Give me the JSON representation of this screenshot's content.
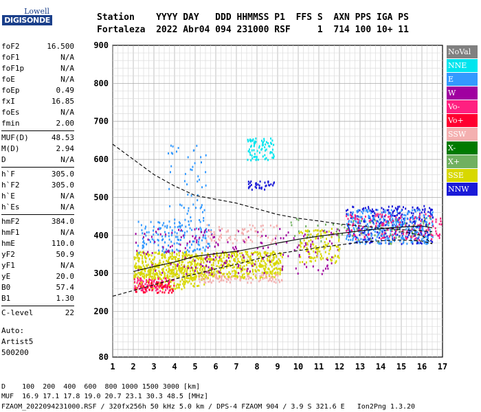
{
  "logo": {
    "top": "Lowell",
    "bottom": "DIGISONDE"
  },
  "header": {
    "line1": "Station    YYYY DAY   DDD HHMMSS P1  FFS S  AXN PPS IGA PS",
    "line2": "Fortaleza  2022 Abr04 094 231000 RSF     1  714 100 10+ 11"
  },
  "params": [
    {
      "label": "foF2",
      "value": "16.500"
    },
    {
      "label": "foF1",
      "value": "N/A"
    },
    {
      "label": "foF1p",
      "value": "N/A"
    },
    {
      "label": "foE",
      "value": "N/A"
    },
    {
      "label": "foEp",
      "value": "0.49"
    },
    {
      "label": "fxI",
      "value": "16.85"
    },
    {
      "label": "foEs",
      "value": "N/A"
    },
    {
      "label": "fmin",
      "value": "2.00"
    },
    {
      "label": "MUF(D)",
      "value": "48.53"
    },
    {
      "label": "M(D)",
      "value": "2.94"
    },
    {
      "label": "D",
      "value": "N/A"
    },
    {
      "label": "h`F",
      "value": "305.0"
    },
    {
      "label": "h`F2",
      "value": "305.0"
    },
    {
      "label": "h`E",
      "value": "N/A"
    },
    {
      "label": "h`Es",
      "value": "N/A"
    },
    {
      "label": "hmF2",
      "value": "384.0"
    },
    {
      "label": "hmF1",
      "value": "N/A"
    },
    {
      "label": "hmE",
      "value": "110.0"
    },
    {
      "label": "yF2",
      "value": "50.9"
    },
    {
      "label": "yF1",
      "value": "N/A"
    },
    {
      "label": "yE",
      "value": "20.0"
    },
    {
      "label": "B0",
      "value": "57.4"
    },
    {
      "label": "B1",
      "value": "1.30"
    },
    {
      "label": "C-level",
      "value": "22"
    }
  ],
  "auto": [
    "Auto:",
    "Artist5",
    "500200"
  ],
  "legend": [
    {
      "label": "NoVal",
      "color": "#808080"
    },
    {
      "label": "NNE",
      "color": "#00e5ee"
    },
    {
      "label": "E",
      "color": "#3399ff"
    },
    {
      "label": "W",
      "color": "#a000a0"
    },
    {
      "label": "Vo-",
      "color": "#ff2080"
    },
    {
      "label": "Vo+",
      "color": "#ff0030"
    },
    {
      "label": "SSW",
      "color": "#f4b0b0"
    },
    {
      "label": "X-",
      "color": "#007a00"
    },
    {
      "label": "X+",
      "color": "#70b060"
    },
    {
      "label": "SSE",
      "color": "#d8d800"
    },
    {
      "label": "NNW",
      "color": "#1a1ad8"
    }
  ],
  "footer": {
    "line1": "D    100  200  400  600  800 1000 1500 3000 [km]",
    "line2": "MUF  16.9 17.1 17.8 19.0 20.7 23.1 30.3 48.5 [MHz]",
    "line3": "FZAOM_2022094231000.RSF / 320fx256h 50 kHz 5.0 km / DPS-4 FZAOM 904 / 3.9 S 321.6 E   Ion2Png 1.3.20"
  },
  "chart_data": {
    "type": "scatter",
    "xlim": [
      1,
      17
    ],
    "ylim": [
      80,
      900
    ],
    "x_ticks": [
      1,
      2,
      3,
      4,
      5,
      6,
      7,
      8,
      9,
      10,
      11,
      12,
      13,
      14,
      15,
      16,
      17
    ],
    "y_ticks": [
      80,
      200,
      300,
      400,
      500,
      600,
      700,
      800,
      900
    ],
    "grid": true,
    "echo_clusters": [
      {
        "mode": "SSE",
        "x": [
          2.0,
          9.2
        ],
        "y": [
          290,
          360
        ],
        "density": 0.55
      },
      {
        "mode": "SSE",
        "x": [
          2.0,
          5.5
        ],
        "y": [
          260,
          320
        ],
        "density": 0.35
      },
      {
        "mode": "Vo-",
        "x": [
          2.0,
          4.0
        ],
        "y": [
          255,
          290
        ],
        "density": 0.45
      },
      {
        "mode": "Vo+",
        "x": [
          2.0,
          4.0
        ],
        "y": [
          250,
          280
        ],
        "density": 0.3
      },
      {
        "mode": "SSW",
        "x": [
          5.0,
          9.2
        ],
        "y": [
          278,
          300
        ],
        "density": 0.35
      },
      {
        "mode": "E",
        "x": [
          2.2,
          5.8
        ],
        "y": [
          355,
          440
        ],
        "density": 0.18
      },
      {
        "mode": "E",
        "x": [
          3.5,
          5.5
        ],
        "y": [
          440,
          640
        ],
        "density": 0.05
      },
      {
        "mode": "NNE",
        "x": [
          7.5,
          8.8
        ],
        "y": [
          600,
          660
        ],
        "density": 0.35
      },
      {
        "mode": "NNW",
        "x": [
          7.5,
          8.8
        ],
        "y": [
          520,
          545
        ],
        "density": 0.4
      },
      {
        "mode": "NNW",
        "x": [
          12.3,
          16.5
        ],
        "y": [
          380,
          480
        ],
        "density": 0.25
      },
      {
        "mode": "E",
        "x": [
          12.3,
          16.5
        ],
        "y": [
          380,
          470
        ],
        "density": 0.3
      },
      {
        "mode": "Vo-",
        "x": [
          12.3,
          17.0
        ],
        "y": [
          390,
          460
        ],
        "density": 0.15
      },
      {
        "mode": "W",
        "x": [
          2.0,
          12.0
        ],
        "y": [
          300,
          420
        ],
        "density": 0.06
      },
      {
        "mode": "SSE",
        "x": [
          10.0,
          12.0
        ],
        "y": [
          330,
          420
        ],
        "density": 0.25
      },
      {
        "mode": "X+",
        "x": [
          9.5,
          16.5
        ],
        "y": [
          380,
          450
        ],
        "density": 0.05
      },
      {
        "mode": "SSW",
        "x": [
          5.5,
          9.0
        ],
        "y": [
          380,
          430
        ],
        "density": 0.15
      }
    ],
    "profile_curve": {
      "x": [
        1.0,
        2.0,
        3.0,
        4.0,
        5.0,
        6.0,
        7.0,
        8.0,
        9.0,
        10.0,
        11.0,
        12.0,
        13.0,
        14.0,
        15.0,
        16.0,
        16.5,
        16.0,
        15.0
      ],
      "y": [
        240,
        255,
        270,
        285,
        298,
        312,
        324,
        338,
        352,
        360,
        368,
        375,
        382,
        386,
        388,
        385,
        378,
        400,
        410
      ]
    },
    "muf_curve": {
      "x": [
        1.0,
        2.0,
        3.0,
        4.0,
        5.0,
        6.0,
        7.0,
        8.0,
        9.0,
        10.0,
        11.0,
        12.0,
        13.0,
        14.0,
        15.0,
        16.0,
        16.5
      ],
      "y": [
        640,
        600,
        560,
        530,
        505,
        495,
        485,
        470,
        455,
        445,
        438,
        430,
        425,
        420,
        415,
        412,
        410
      ]
    },
    "upper_trace": {
      "x": [
        2.0,
        3.0,
        4.0,
        5.0,
        6.0,
        7.0,
        8.0,
        9.0,
        10.0,
        11.0,
        12.0,
        13.0,
        14.0,
        15.0,
        16.0,
        16.5
      ],
      "y": [
        305,
        318,
        330,
        345,
        352,
        358,
        368,
        380,
        390,
        398,
        405,
        412,
        418,
        422,
        425,
        420
      ]
    }
  }
}
